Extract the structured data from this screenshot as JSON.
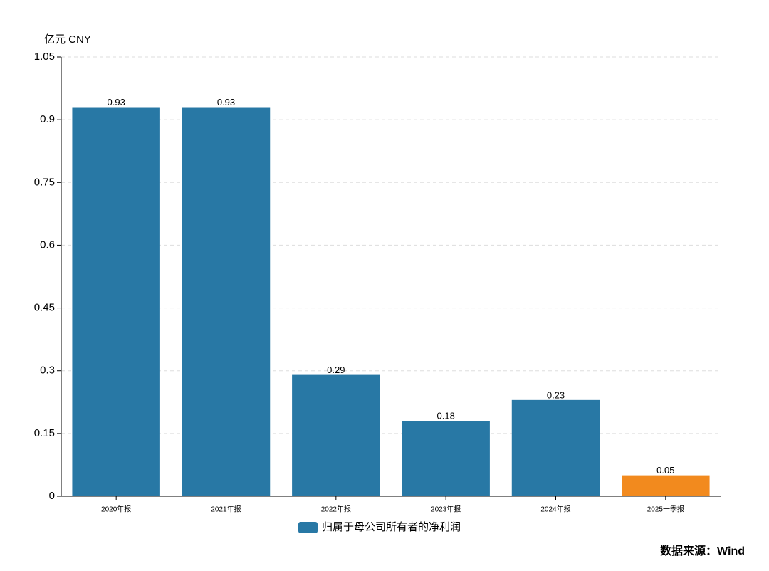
{
  "chart_data": {
    "type": "bar",
    "unit_label": "亿元 CNY",
    "categories": [
      "2020年报",
      "2021年报",
      "2022年报",
      "2023年报",
      "2024年报",
      "2025一季报"
    ],
    "series": [
      {
        "name": "归属于母公司所有者的净利润",
        "color": "#2878a5",
        "values": [
          0.93,
          0.93,
          0.29,
          0.18,
          0.23,
          0.05
        ],
        "bar_colors": [
          "#2878a5",
          "#2878a5",
          "#2878a5",
          "#2878a5",
          "#2878a5",
          "#f28a1e"
        ]
      }
    ],
    "ylim": [
      0,
      1.05
    ],
    "yticks": [
      0,
      0.15,
      0.3,
      0.45,
      0.6,
      0.75,
      0.9,
      1.05
    ],
    "grid": true,
    "source": "数据来源：Wind",
    "source_color": "#e0201b"
  }
}
